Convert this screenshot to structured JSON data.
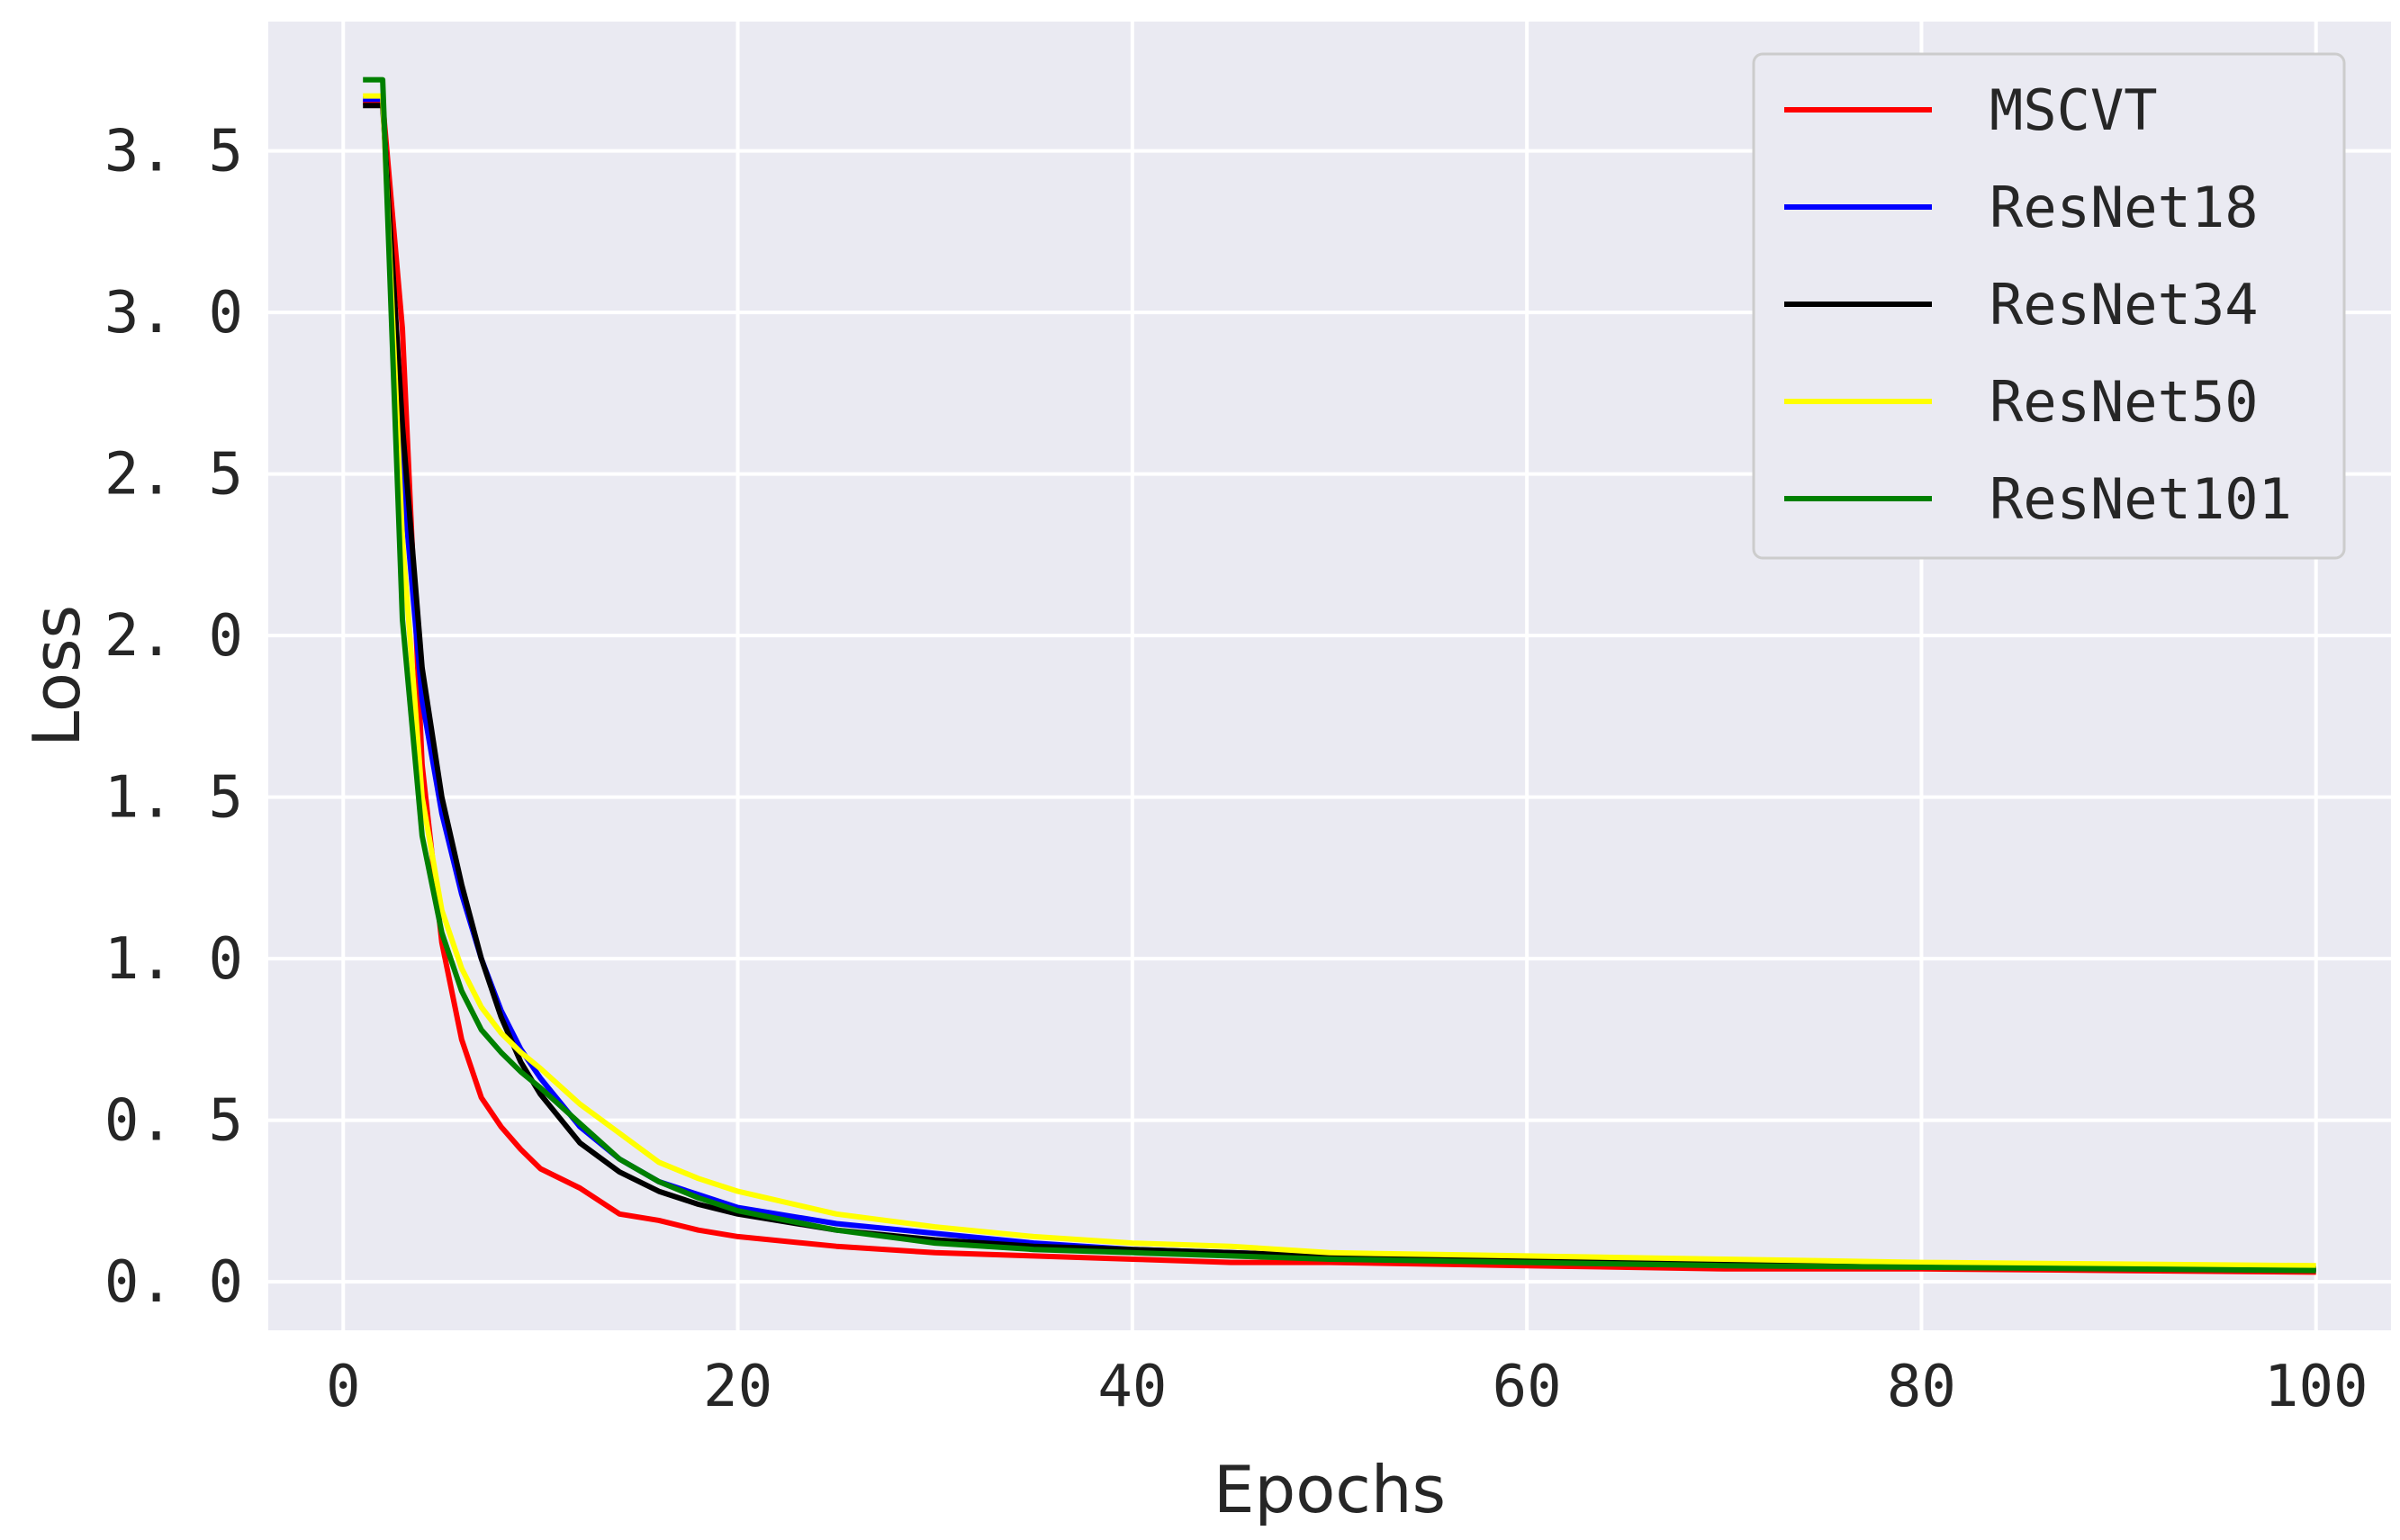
{
  "chart_data": {
    "type": "line",
    "title": "",
    "xlabel": "Epochs",
    "ylabel": "Loss",
    "xlim": [
      -3.8,
      103.8
    ],
    "ylim": [
      -0.15,
      3.9
    ],
    "xticks": [
      0,
      20,
      40,
      60,
      80,
      100
    ],
    "xtick_labels": [
      "0",
      "20",
      "40",
      "60",
      "80",
      "100"
    ],
    "yticks": [
      0.0,
      0.5,
      1.0,
      1.5,
      2.0,
      2.5,
      3.0,
      3.5
    ],
    "ytick_labels": [
      "0. 0",
      "0. 5",
      "1. 0",
      "1. 5",
      "2. 0",
      "2. 5",
      "3. 0",
      "3. 5"
    ],
    "grid": true,
    "legend_position": "top-right",
    "background": "#eaeaf2",
    "series": [
      {
        "name": "MSCVT",
        "color": "#ff0000",
        "x": [
          1,
          2,
          3,
          4,
          5,
          6,
          7,
          8,
          9,
          10,
          12,
          14,
          16,
          18,
          20,
          25,
          30,
          35,
          40,
          45,
          50,
          60,
          70,
          80,
          90,
          100
        ],
        "y": [
          3.65,
          3.65,
          2.95,
          1.6,
          1.05,
          0.75,
          0.57,
          0.48,
          0.41,
          0.35,
          0.29,
          0.21,
          0.19,
          0.16,
          0.14,
          0.11,
          0.09,
          0.08,
          0.07,
          0.06,
          0.06,
          0.05,
          0.04,
          0.04,
          0.035,
          0.03
        ]
      },
      {
        "name": "ResNet18",
        "color": "#0000ff",
        "x": [
          1,
          2,
          3,
          4,
          5,
          6,
          7,
          8,
          9,
          10,
          12,
          14,
          16,
          18,
          20,
          25,
          30,
          35,
          40,
          45,
          50,
          60,
          70,
          80,
          90,
          100
        ],
        "y": [
          3.66,
          3.66,
          2.5,
          1.8,
          1.45,
          1.2,
          1.0,
          0.84,
          0.72,
          0.63,
          0.48,
          0.38,
          0.31,
          0.27,
          0.23,
          0.18,
          0.15,
          0.12,
          0.1,
          0.09,
          0.08,
          0.07,
          0.06,
          0.05,
          0.045,
          0.04
        ]
      },
      {
        "name": "ResNet34",
        "color": "#000000",
        "x": [
          1,
          2,
          3,
          4,
          5,
          6,
          7,
          8,
          9,
          10,
          12,
          14,
          16,
          18,
          20,
          25,
          30,
          35,
          40,
          45,
          50,
          60,
          70,
          80,
          90,
          100
        ],
        "y": [
          3.64,
          3.64,
          2.65,
          1.9,
          1.5,
          1.23,
          1.0,
          0.82,
          0.68,
          0.58,
          0.43,
          0.34,
          0.28,
          0.24,
          0.21,
          0.16,
          0.13,
          0.11,
          0.1,
          0.09,
          0.08,
          0.07,
          0.06,
          0.05,
          0.045,
          0.04
        ]
      },
      {
        "name": "ResNet50",
        "color": "#ffff00",
        "x": [
          1,
          2,
          3,
          4,
          5,
          6,
          7,
          8,
          9,
          10,
          12,
          14,
          16,
          18,
          20,
          25,
          30,
          35,
          40,
          45,
          50,
          60,
          70,
          80,
          90,
          100
        ],
        "y": [
          3.67,
          3.67,
          2.3,
          1.5,
          1.15,
          0.97,
          0.85,
          0.77,
          0.71,
          0.66,
          0.55,
          0.46,
          0.37,
          0.32,
          0.28,
          0.21,
          0.17,
          0.14,
          0.12,
          0.11,
          0.09,
          0.08,
          0.07,
          0.06,
          0.055,
          0.05
        ]
      },
      {
        "name": "ResNet101",
        "color": "#008000",
        "x": [
          1,
          2,
          3,
          4,
          5,
          6,
          7,
          8,
          9,
          10,
          12,
          14,
          16,
          18,
          20,
          25,
          30,
          35,
          40,
          45,
          50,
          60,
          70,
          80,
          90,
          100
        ],
        "y": [
          3.72,
          3.72,
          2.05,
          1.38,
          1.08,
          0.9,
          0.78,
          0.71,
          0.65,
          0.6,
          0.49,
          0.38,
          0.31,
          0.26,
          0.22,
          0.16,
          0.12,
          0.1,
          0.09,
          0.08,
          0.07,
          0.06,
          0.05,
          0.045,
          0.04,
          0.035
        ]
      }
    ]
  }
}
